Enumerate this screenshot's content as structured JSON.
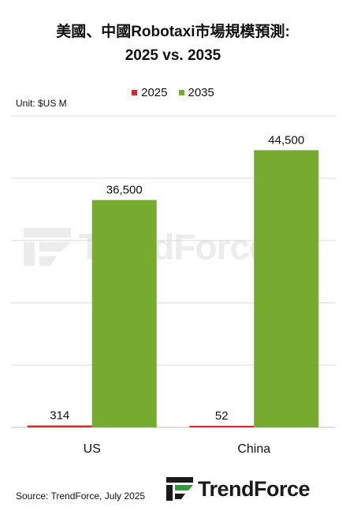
{
  "chart_data": {
    "type": "bar",
    "title_line1": "美國、中國Robotaxi市場規模預測:",
    "title_line2": "2025 vs. 2035",
    "unit": "Unit: $US M",
    "categories": [
      "US",
      "China"
    ],
    "series": [
      {
        "name": "2025",
        "values": [
          314,
          52
        ],
        "labels": [
          "314",
          "52"
        ],
        "color": "#d92b2b"
      },
      {
        "name": "2035",
        "values": [
          36500,
          44500
        ],
        "labels": [
          "36,500",
          "44,500"
        ],
        "color": "#77ab2f"
      }
    ],
    "ylim": [
      0,
      50000
    ],
    "ytick_step": 10000,
    "grid": true,
    "legend_position": "top-center"
  },
  "source": "Source: TrendForce, July 2025",
  "logo": {
    "text": "TrendForce",
    "icon": "trendforce-logo-icon"
  }
}
